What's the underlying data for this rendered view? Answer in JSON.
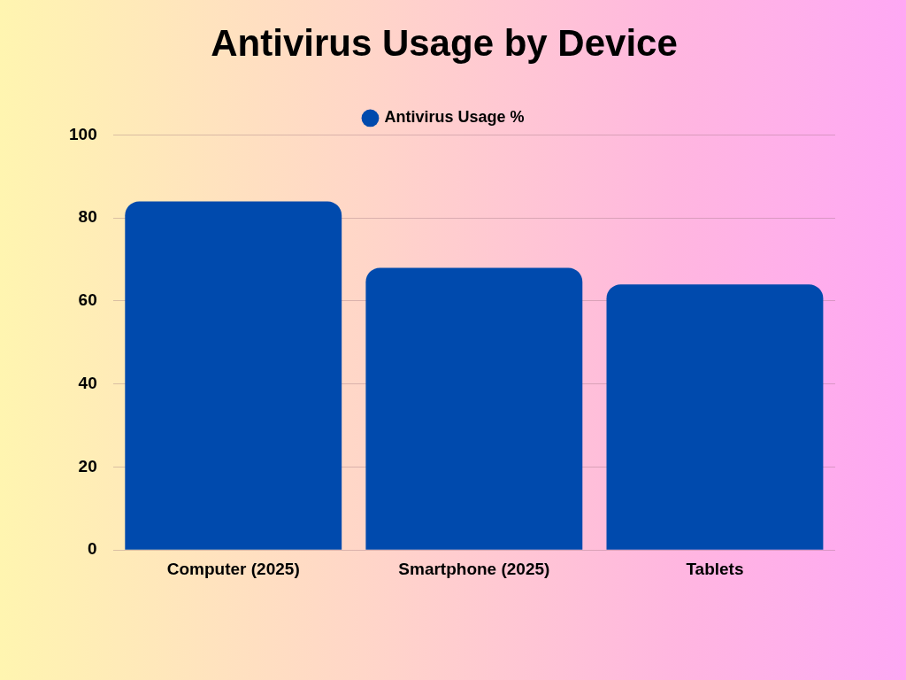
{
  "chart_data": {
    "type": "bar",
    "title": "Antivirus Usage by Device",
    "categories": [
      "Computer (2025)",
      "Smartphone (2025)",
      "Tablets"
    ],
    "series": [
      {
        "name": "Antivirus Usage %",
        "color": "#004aad",
        "values": [
          84,
          68,
          64
        ]
      }
    ],
    "ylim": [
      0,
      100
    ],
    "yticks": [
      0,
      20,
      40,
      60,
      80,
      100
    ],
    "grid": "y",
    "legend": "top"
  }
}
